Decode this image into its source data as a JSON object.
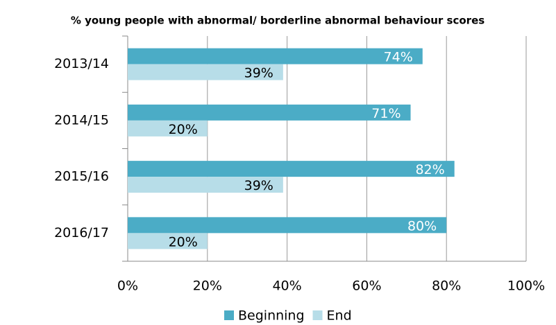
{
  "chart_data": {
    "type": "hbar",
    "title": "% young people with abnormal/ borderline abnormal behaviour scores",
    "categories": [
      "2013/14",
      "2014/15",
      "2015/16",
      "2016/17"
    ],
    "series": [
      {
        "name": "Beginning",
        "color": "#4bacc6",
        "values": [
          74,
          71,
          82,
          80
        ],
        "value_labels": [
          "74%",
          "71%",
          "82%",
          "80%"
        ]
      },
      {
        "name": "End",
        "color": "#b7dde8",
        "values": [
          39,
          20,
          39,
          20
        ],
        "value_labels": [
          "39%",
          "20%",
          "39%",
          "20%"
        ]
      }
    ],
    "xlim": [
      0,
      100
    ],
    "xticks": [
      {
        "value": 0,
        "label": "0%"
      },
      {
        "value": 20,
        "label": "20%"
      },
      {
        "value": 40,
        "label": "40%"
      },
      {
        "value": 60,
        "label": "60%"
      },
      {
        "value": 80,
        "label": "80%"
      },
      {
        "value": 100,
        "label": "100%"
      }
    ],
    "grid": true
  }
}
